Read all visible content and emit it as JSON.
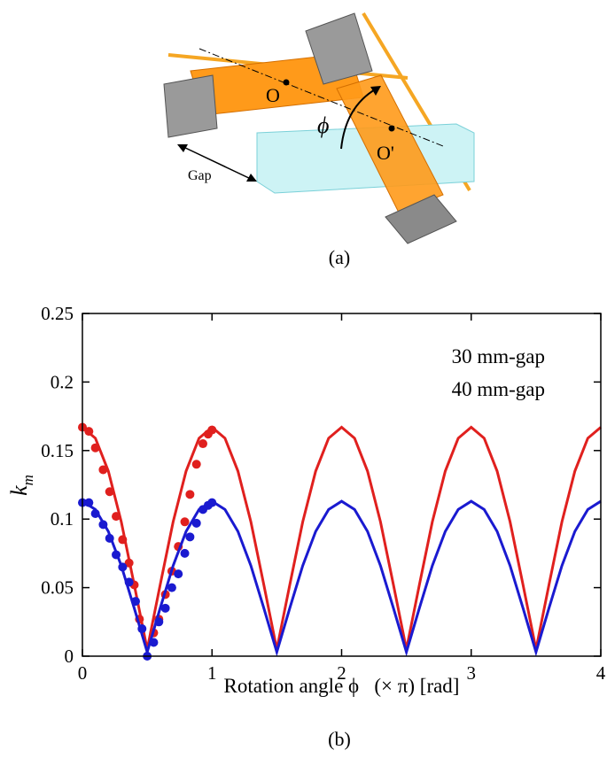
{
  "diagram": {
    "labels": {
      "o": "O",
      "o_prime": "O'",
      "phi": "ϕ",
      "gap": "Gap"
    },
    "caption": "(a)"
  },
  "chart_data": {
    "type": "line",
    "caption": "(b)",
    "xlabel": "Rotation angle ϕ   (× π) [rad]",
    "ylabel": "k",
    "ylabel_sub": "m",
    "xlim": [
      0,
      4
    ],
    "xticks": [
      0,
      1,
      2,
      3,
      4
    ],
    "ylim": [
      0,
      0.25
    ],
    "yticks": [
      0,
      0.05,
      0.1,
      0.15,
      0.2,
      0.25
    ],
    "x": [
      0,
      0.1,
      0.2,
      0.3,
      0.4,
      0.5,
      0.6,
      0.7,
      0.8,
      0.9,
      1,
      1.1,
      1.2,
      1.3,
      1.4,
      1.5,
      1.6,
      1.7,
      1.8,
      1.9,
      2,
      2.1,
      2.2,
      2.3,
      2.4,
      2.5,
      2.6,
      2.7,
      2.8,
      2.9,
      3,
      3.1,
      3.2,
      3.3,
      3.4,
      3.5,
      3.6,
      3.7,
      3.8,
      3.9,
      4
    ],
    "series": [
      {
        "name": "30 mm-gap",
        "color": "#e0201e",
        "values": [
          0.167,
          0.159,
          0.135,
          0.098,
          0.052,
          0.005,
          0.052,
          0.098,
          0.135,
          0.159,
          0.167,
          0.159,
          0.135,
          0.098,
          0.052,
          0.005,
          0.052,
          0.098,
          0.135,
          0.159,
          0.167,
          0.159,
          0.135,
          0.098,
          0.052,
          0.005,
          0.052,
          0.098,
          0.135,
          0.159,
          0.167,
          0.159,
          0.135,
          0.098,
          0.052,
          0.005,
          0.052,
          0.098,
          0.135,
          0.159,
          0.167
        ],
        "markers": {
          "x": [
            0,
            0.05,
            0.1,
            0.16,
            0.21,
            0.26,
            0.31,
            0.36,
            0.4,
            0.44,
            0.55,
            0.59,
            0.64,
            0.69,
            0.74,
            0.79,
            0.83,
            0.88,
            0.93,
            0.97,
            1.0
          ],
          "values": [
            0.167,
            0.164,
            0.152,
            0.136,
            0.12,
            0.102,
            0.085,
            0.068,
            0.052,
            0.027,
            0.017,
            0.027,
            0.045,
            0.062,
            0.08,
            0.098,
            0.118,
            0.14,
            0.155,
            0.162,
            0.165
          ]
        }
      },
      {
        "name": "40 mm-gap",
        "color": "#1a1ad0",
        "values": [
          0.113,
          0.107,
          0.091,
          0.066,
          0.035,
          0.003,
          0.035,
          0.066,
          0.091,
          0.107,
          0.113,
          0.107,
          0.091,
          0.066,
          0.035,
          0.003,
          0.035,
          0.066,
          0.091,
          0.107,
          0.113,
          0.107,
          0.091,
          0.066,
          0.035,
          0.003,
          0.035,
          0.066,
          0.091,
          0.107,
          0.113,
          0.107,
          0.091,
          0.066,
          0.035,
          0.003,
          0.035,
          0.066,
          0.091,
          0.107,
          0.113
        ],
        "markers": {
          "x": [
            0,
            0.05,
            0.1,
            0.16,
            0.21,
            0.26,
            0.31,
            0.36,
            0.41,
            0.46,
            0.5,
            0.55,
            0.59,
            0.64,
            0.69,
            0.74,
            0.79,
            0.83,
            0.88,
            0.93,
            0.97,
            1.0
          ],
          "values": [
            0.112,
            0.112,
            0.104,
            0.096,
            0.086,
            0.074,
            0.065,
            0.054,
            0.04,
            0.02,
            0,
            0.01,
            0.025,
            0.035,
            0.05,
            0.06,
            0.075,
            0.087,
            0.097,
            0.107,
            0.11,
            0.112
          ]
        }
      }
    ]
  }
}
